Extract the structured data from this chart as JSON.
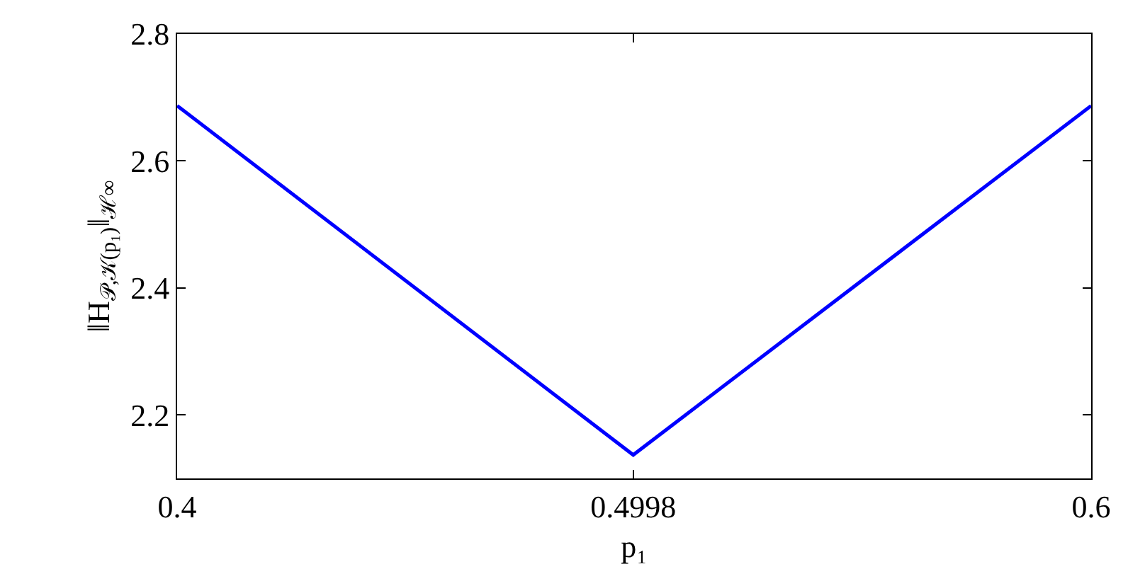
{
  "chart_data": {
    "type": "line",
    "xlabel": "p₁",
    "ylabel": "‖H$_{𝒫,𝒦(p₁)}$‖$_{ℋ∞}$",
    "x": [
      0.4,
      0.4998,
      0.6
    ],
    "series": [
      {
        "color": "#0000ff",
        "values": [
          2.687,
          2.137,
          2.687
        ]
      }
    ],
    "xlim": [
      0.4,
      0.6
    ],
    "xticks": [
      0.4,
      0.4998,
      0.6
    ],
    "ylim": [
      2.1,
      2.8
    ],
    "yticks": [
      2.2,
      2.4,
      2.6,
      2.8
    ],
    "grid": false,
    "legend": false,
    "marker": "none",
    "line_style": "solid"
  }
}
